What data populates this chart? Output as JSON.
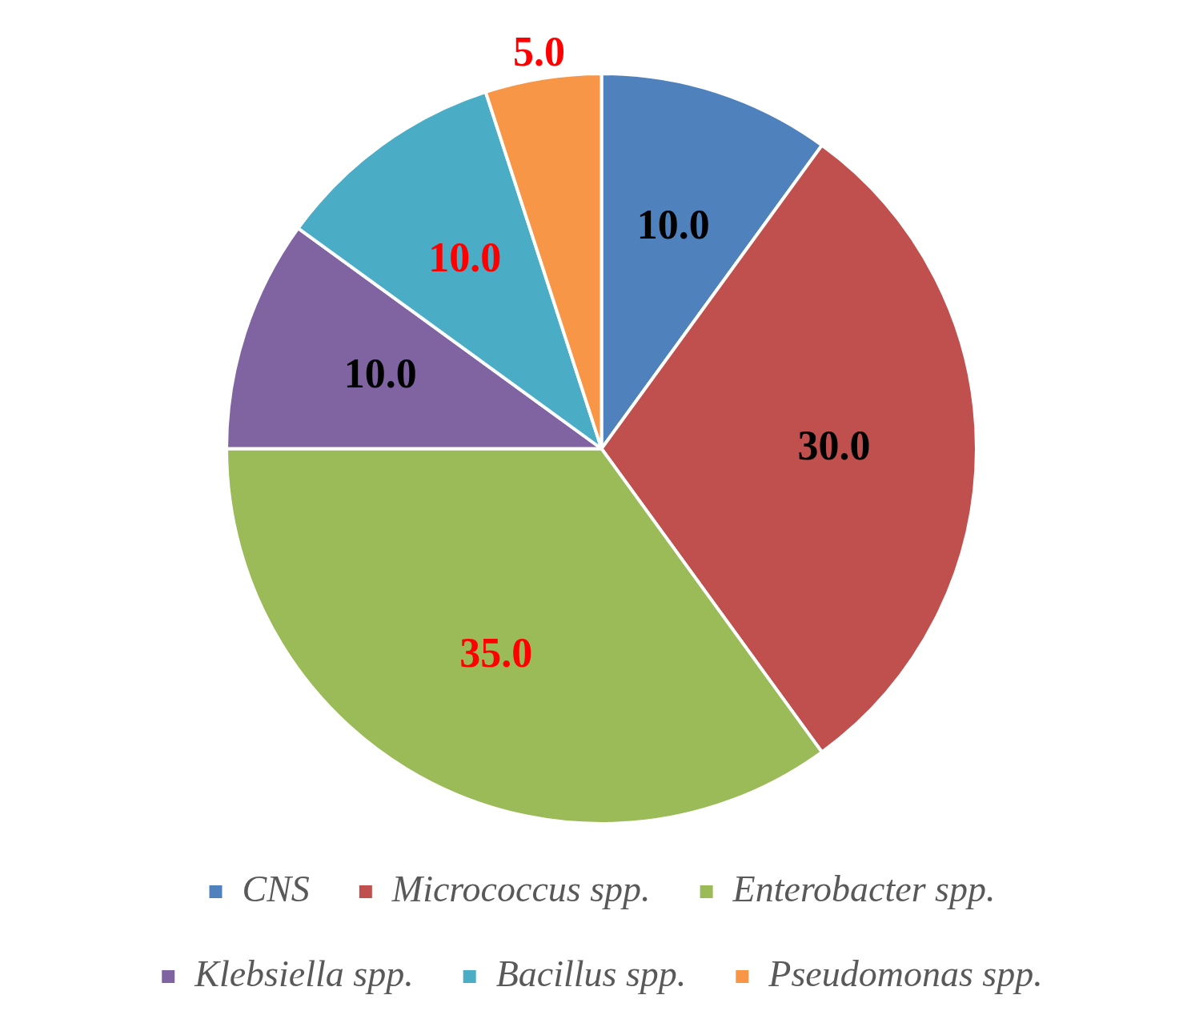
{
  "chart_data": {
    "type": "pie",
    "categories": [
      "CNS",
      "Micrococcus spp.",
      "Enterobacter spp.",
      "Klebsiella spp.",
      "Bacillus spp.",
      "Pseudomonas spp."
    ],
    "values": [
      10,
      30,
      35,
      10,
      10,
      5
    ],
    "colors": [
      "#4f81bd",
      "#c0504d",
      "#9bbb59",
      "#8064a2",
      "#4bacc6",
      "#f79646"
    ],
    "value_labels": [
      "10.0",
      "30.0",
      "35.0",
      "10.0",
      "10.0",
      "5.0"
    ],
    "legend": "bottom"
  }
}
